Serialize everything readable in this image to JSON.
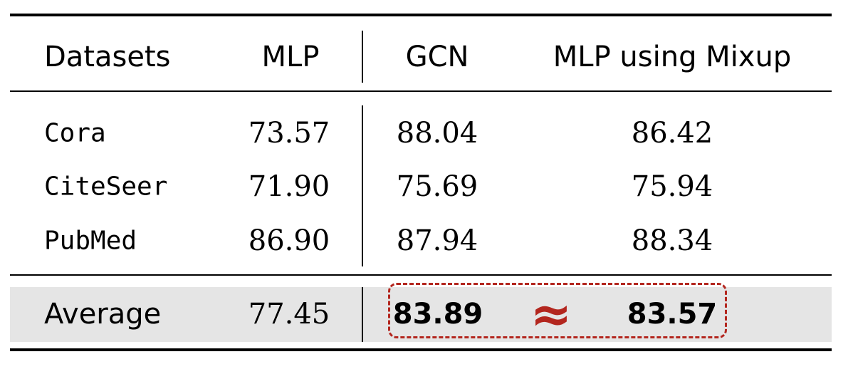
{
  "table": {
    "headers": [
      "Datasets",
      "MLP",
      "GCN",
      "MLP using Mixup"
    ],
    "rows": [
      {
        "dataset": "Cora",
        "mlp": "73.57",
        "gcn": "88.04",
        "mixup": "86.42"
      },
      {
        "dataset": "CiteSeer",
        "mlp": "71.90",
        "gcn": "75.69",
        "mixup": "75.94"
      },
      {
        "dataset": "PubMed",
        "mlp": "86.90",
        "gcn": "87.94",
        "mixup": "88.34"
      }
    ],
    "average": {
      "label": "Average",
      "mlp": "77.45",
      "gcn": "83.89",
      "mixup": "83.57"
    },
    "approx_symbol": "≈"
  },
  "colors": {
    "highlight": "#b3261e",
    "average_row_bg": "#e5e5e5"
  }
}
